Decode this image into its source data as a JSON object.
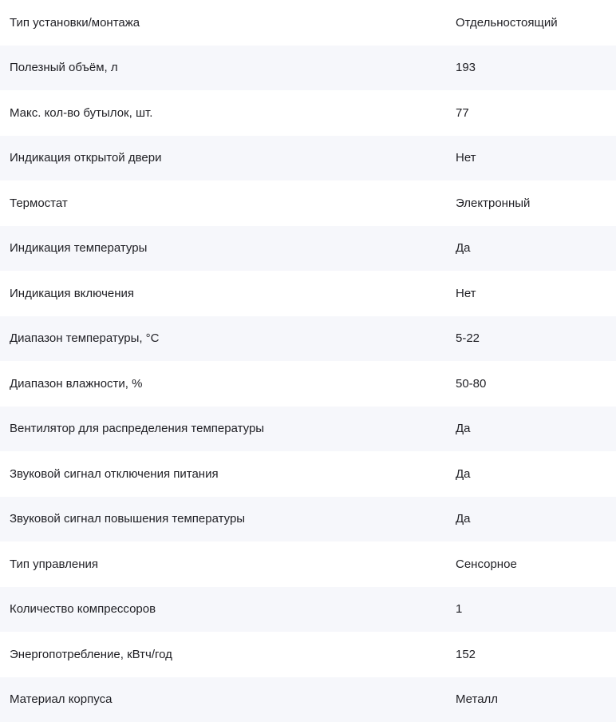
{
  "specs": [
    {
      "label": "Тип установки/монтажа",
      "value": "Отдельностоящий"
    },
    {
      "label": "Полезный объём, л",
      "value": "193"
    },
    {
      "label": "Макс. кол-во бутылок, шт.",
      "value": "77"
    },
    {
      "label": "Индикация открытой двери",
      "value": "Нет"
    },
    {
      "label": "Термостат",
      "value": "Электронный"
    },
    {
      "label": "Индикация температуры",
      "value": "Да"
    },
    {
      "label": "Индикация включения",
      "value": "Нет"
    },
    {
      "label": "Диапазон температуры, °С",
      "value": "5-22"
    },
    {
      "label": "Диапазон влажности, %",
      "value": "50-80"
    },
    {
      "label": "Вентилятор для распределения температуры",
      "value": "Да"
    },
    {
      "label": "Звуковой сигнал отключения питания",
      "value": "Да"
    },
    {
      "label": "Звуковой сигнал повышения температуры",
      "value": "Да"
    },
    {
      "label": "Тип управления",
      "value": "Сенсорное"
    },
    {
      "label": "Количество компрессоров",
      "value": "1"
    },
    {
      "label": "Энергопотребление, кВтч/год",
      "value": "152"
    },
    {
      "label": "Материал корпуса",
      "value": "Металл"
    }
  ]
}
